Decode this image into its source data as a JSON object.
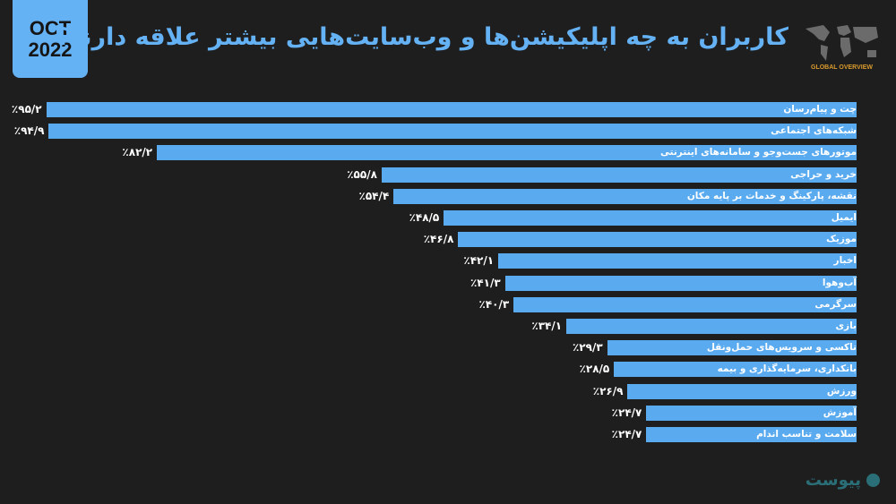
{
  "header": {
    "month": "OCT",
    "year": "2022",
    "title": "کاربران به چه اپلیکیشن‌ها و وب‌سایت‌هایی بیشتر علاقه دارند؟",
    "badge_caption": "GLOBAL OVERVIEW"
  },
  "logo_text": "پیوست",
  "colors": {
    "background": "#1e1e1f",
    "bar": "#5aaaf0",
    "accent": "#64b1f4"
  },
  "chart_data": {
    "type": "bar",
    "orientation": "horizontal",
    "direction": "right-to-left",
    "title": "کاربران به چه اپلیکیشن‌ها و وب‌سایت‌هایی بیشتر علاقه دارند؟",
    "unit": "%",
    "categories": [
      "چت و پیام‌رسان",
      "شبکه‌های اجتماعی",
      "موتورهای جست‌وجو و سامانه‌های اینترنتی",
      "خرید و حراجی",
      "نقشه، پارکینگ و خدمات بر پایه مکان",
      "ایمیل",
      "موزیک",
      "اخبار",
      "آب‌وهوا",
      "سرگرمی",
      "بازی",
      "تاکسی و سرویس‌های حمل‌ونقل",
      "بانکداری، سرمایه‌گذاری و بیمه",
      "ورزش",
      "آموزش",
      "سلامت و تناسب اندام"
    ],
    "values": [
      95.2,
      94.9,
      82.2,
      55.8,
      54.4,
      48.5,
      46.8,
      42.1,
      41.3,
      40.3,
      34.1,
      29.3,
      28.5,
      26.9,
      24.7,
      24.7
    ],
    "value_labels": [
      "٪۹۵/۲",
      "٪۹۴/۹",
      "٪۸۲/۲",
      "٪۵۵/۸",
      "٪۵۴/۴",
      "٪۴۸/۵",
      "٪۴۶/۸",
      "٪۴۲/۱",
      "٪۴۱/۳",
      "٪۴۰/۳",
      "٪۳۴/۱",
      "٪۲۹/۳",
      "٪۲۸/۵",
      "٪۲۶/۹",
      "٪۲۴/۷",
      "٪۲۴/۷"
    ],
    "grid": false
  }
}
